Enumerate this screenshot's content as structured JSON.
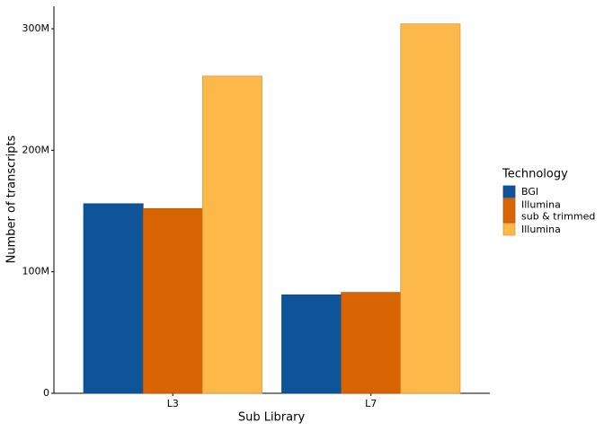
{
  "chart_data": {
    "type": "bar",
    "x_label": "Sub Library",
    "y_label": "Number of transcripts",
    "legend_title": "Technology",
    "legend_position": "right",
    "categories": [
      "L3",
      "L7"
    ],
    "series": [
      {
        "name": "BGI",
        "color": "#0e5499",
        "values": [
          156000000,
          81000000
        ]
      },
      {
        "name": "Illumina\nsub & trimmed",
        "color": "#d96403",
        "values": [
          152000000,
          83000000
        ]
      },
      {
        "name": "Illumina",
        "color": "#fdb84a",
        "values": [
          261000000,
          304000000
        ]
      }
    ],
    "ylim": [
      0,
      318500000
    ],
    "yticks": [
      0,
      {
        "value": 100000000,
        "label": "100M"
      },
      {
        "value": 200000000,
        "label": "200M"
      },
      {
        "value": 300000000,
        "label": "300M"
      }
    ],
    "grid": false
  }
}
